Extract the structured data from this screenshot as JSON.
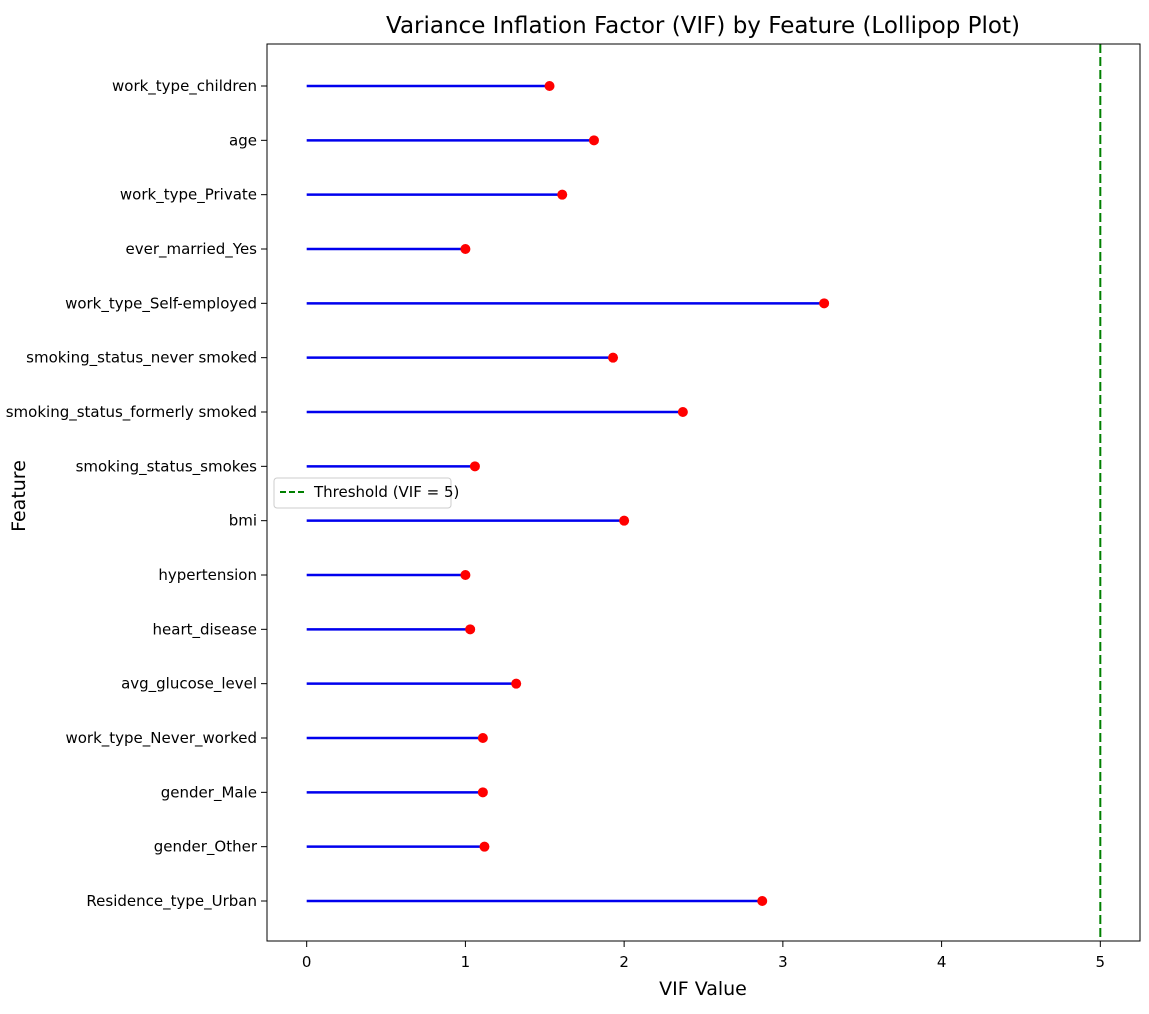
{
  "chart_data": {
    "type": "lollipop",
    "orientation": "horizontal",
    "title": "Variance Inflation Factor (VIF) by Feature (Lollipop Plot)",
    "xlabel": "VIF Value",
    "ylabel": "Feature",
    "xlim": [
      -0.25,
      5.25
    ],
    "xticks": [
      0,
      1,
      2,
      3,
      4,
      5
    ],
    "categories": [
      "work_type_children",
      "age",
      "work_type_Private",
      "ever_married_Yes",
      "work_type_Self-employed",
      "smoking_status_never smoked",
      "smoking_status_formerly smoked",
      "smoking_status_smokes",
      "bmi",
      "hypertension",
      "heart_disease",
      "avg_glucose_level",
      "work_type_Never_worked",
      "gender_Male",
      "gender_Other",
      "Residence_type_Urban"
    ],
    "values": [
      1.53,
      1.81,
      1.61,
      1.0,
      3.26,
      1.93,
      2.37,
      1.06,
      2.0,
      1.0,
      1.03,
      1.32,
      1.11,
      1.11,
      1.12,
      2.87
    ],
    "stem_color": "#0000ee",
    "marker_color": "#ff0000",
    "threshold": {
      "value": 5,
      "label": "Threshold (VIF = 5)",
      "color": "#008000",
      "style": "dashed"
    },
    "legend": {
      "entries": [
        "Threshold (VIF = 5)"
      ],
      "placement": "center-left"
    },
    "grid": false
  }
}
